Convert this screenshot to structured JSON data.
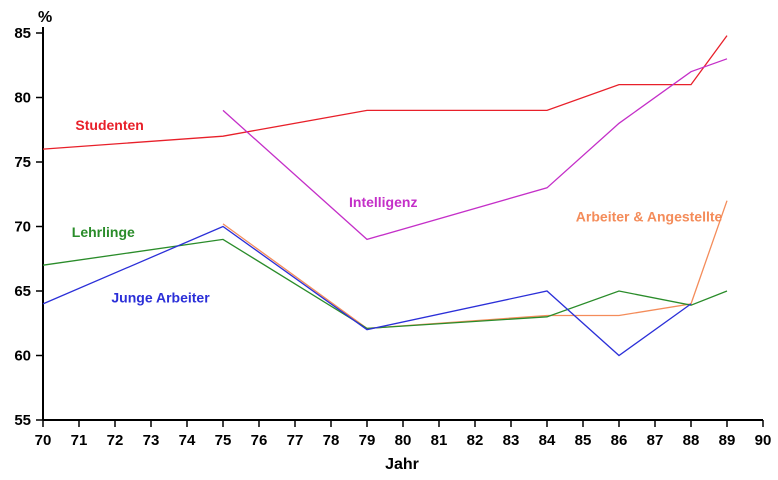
{
  "chart_data": {
    "type": "line",
    "xlabel": "Jahr",
    "ylabel": "%",
    "xlim": [
      70,
      90
    ],
    "ylim": [
      55,
      85
    ],
    "x_ticks": [
      "70",
      "71",
      "72",
      "73",
      "74",
      "75",
      "76",
      "77",
      "78",
      "79",
      "80",
      "81",
      "82",
      "83",
      "84",
      "85",
      "86",
      "87",
      "88",
      "89",
      "90"
    ],
    "y_ticks": [
      "55",
      "60",
      "65",
      "70",
      "75",
      "80",
      "85"
    ],
    "series": [
      {
        "name": "Studenten",
        "color": "#e8202a",
        "x": [
          70,
          75,
          79,
          84,
          86,
          88,
          89
        ],
        "y": [
          76,
          77,
          79,
          79,
          81,
          81,
          84.8
        ]
      },
      {
        "name": "Intelligenz",
        "color": "#c42fc8",
        "x": [
          75,
          79,
          84,
          86,
          88,
          89
        ],
        "y": [
          79,
          69,
          73,
          78,
          82,
          83
        ]
      },
      {
        "name": "Arbeiter & Angestellte",
        "color": "#f48c5a",
        "x": [
          75,
          79,
          84,
          86,
          88,
          89
        ],
        "y": [
          70.2,
          62.1,
          63.1,
          63.1,
          64,
          72
        ]
      },
      {
        "name": "Lehrlinge",
        "color": "#2a8c2a",
        "x": [
          70,
          75,
          79,
          84,
          86,
          88,
          89
        ],
        "y": [
          67,
          69,
          62.1,
          63,
          65,
          63.9,
          65
        ]
      },
      {
        "name": "Junge Arbeiter",
        "color": "#2b2fd8",
        "x": [
          70,
          75,
          79,
          84,
          86,
          88
        ],
        "y": [
          64,
          70,
          62,
          65,
          60,
          64
        ]
      }
    ],
    "labels": [
      {
        "text": "Studenten",
        "color": "#e8202a",
        "x": 70.9,
        "y": 77.5
      },
      {
        "text": "Intelligenz",
        "color": "#c42fc8",
        "x": 78.5,
        "y": 71.5
      },
      {
        "text": "Arbeiter & Angestellte",
        "color": "#f48c5a",
        "x": 84.8,
        "y": 70.4
      },
      {
        "text": "Lehrlinge",
        "color": "#2a8c2a",
        "x": 70.8,
        "y": 69.2
      },
      {
        "text": "Junge Arbeiter",
        "color": "#2b2fd8",
        "x": 71.9,
        "y": 64.1
      }
    ]
  }
}
